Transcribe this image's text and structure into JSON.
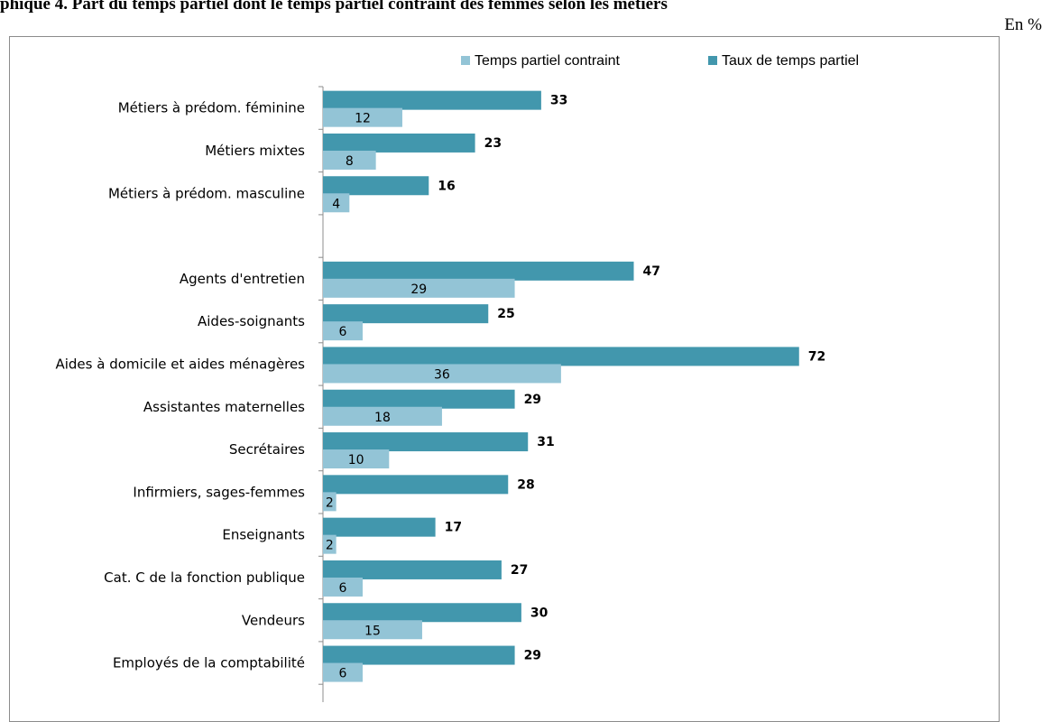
{
  "title": "phique 4. Part du temps partiel dont le temps partiel contraint des femmes selon les métiers",
  "unit": "En %",
  "chart_data": {
    "type": "bar",
    "orientation": "horizontal",
    "categories": [
      "Métiers à prédom. féminine",
      "Métiers mixtes",
      "Métiers à prédom. masculine",
      "",
      "Agents d'entretien",
      "Aides-soignants",
      "Aides à domicile et aides ménagères",
      "Assistantes maternelles",
      "Secrétaires",
      "Infirmiers, sages-femmes",
      "Enseignants",
      "Cat. C de la fonction publique",
      "Vendeurs",
      "Employés de la comptabilité"
    ],
    "series": [
      {
        "name": "Temps partiel contraint",
        "color": "#93c4d6",
        "values": [
          12,
          8,
          4,
          null,
          29,
          6,
          36,
          18,
          10,
          2,
          2,
          6,
          15,
          6
        ]
      },
      {
        "name": "Taux de temps partiel",
        "color": "#4297ad",
        "values": [
          33,
          23,
          16,
          null,
          47,
          25,
          72,
          29,
          31,
          28,
          17,
          27,
          30,
          29
        ]
      }
    ],
    "legend": "top-right",
    "grid": false,
    "xlim": [
      0,
      80
    ]
  }
}
